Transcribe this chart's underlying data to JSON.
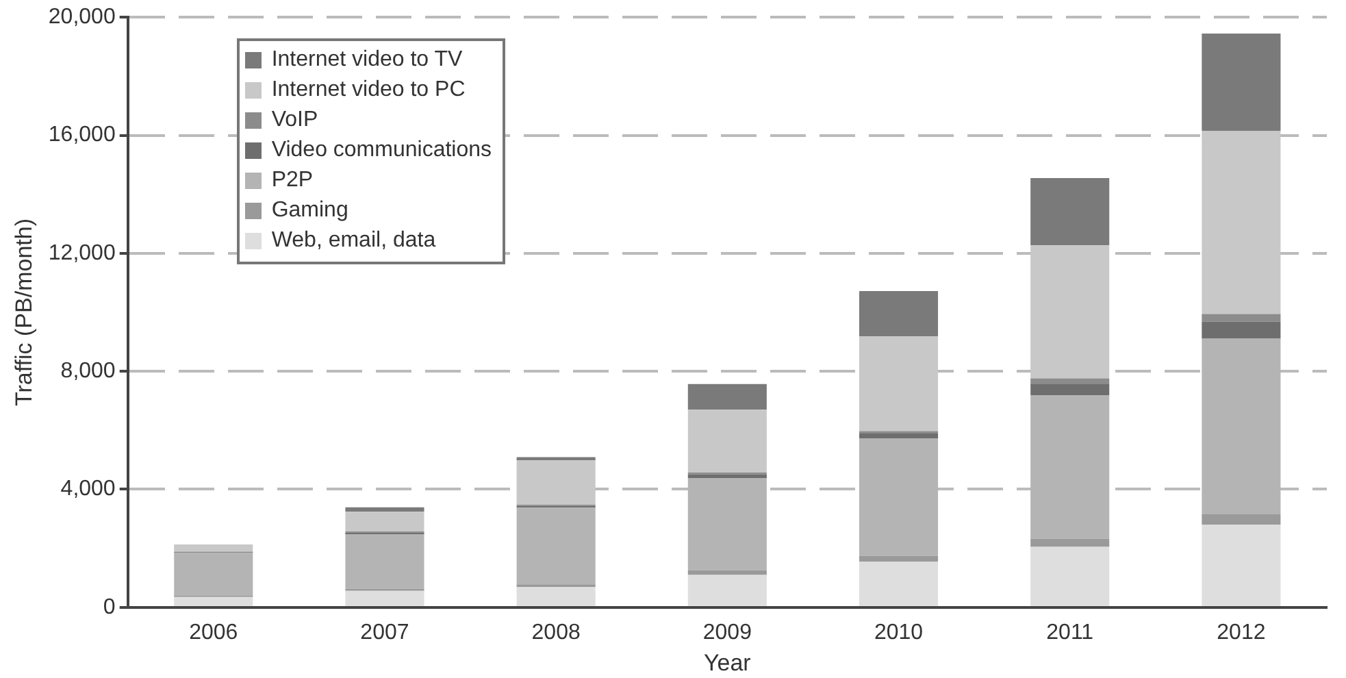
{
  "chart_data": {
    "type": "bar",
    "stacked": true,
    "xlabel": "Year",
    "ylabel": "Traffic (PB/month)",
    "categories": [
      "2006",
      "2007",
      "2008",
      "2009",
      "2010",
      "2011",
      "2012"
    ],
    "series": [
      {
        "name": "Web, email, data",
        "color": "#dedede",
        "values": [
          350,
          560,
          690,
          1100,
          1550,
          2050,
          2800
        ]
      },
      {
        "name": "Gaming",
        "color": "#9a9a9a",
        "values": [
          40,
          70,
          90,
          160,
          200,
          280,
          350
        ]
      },
      {
        "name": "P2P",
        "color": "#b4b4b4",
        "values": [
          1450,
          1840,
          2600,
          3110,
          3970,
          4850,
          5970
        ]
      },
      {
        "name": "Video communications",
        "color": "#6e6e6e",
        "values": [
          30,
          60,
          60,
          140,
          170,
          400,
          560
        ]
      },
      {
        "name": "VoIP",
        "color": "#8c8c8c",
        "values": [
          20,
          40,
          40,
          60,
          80,
          180,
          260
        ]
      },
      {
        "name": "Internet video to PC",
        "color": "#c8c8c8",
        "values": [
          240,
          670,
          1500,
          2130,
          3210,
          4510,
          6210
        ]
      },
      {
        "name": "Internet video to TV",
        "color": "#7a7a7a",
        "values": [
          0,
          150,
          110,
          870,
          1540,
          2280,
          3300
        ]
      }
    ],
    "ylim": [
      0,
      20000
    ],
    "yticks": [
      0,
      {
        "value": 4000,
        "label": "4,000"
      },
      {
        "value": 8000,
        "label": "8,000"
      },
      {
        "value": 12000,
        "label": "12,000"
      },
      {
        "value": 16000,
        "label": "16,000"
      },
      {
        "value": 20000,
        "label": "20,000"
      }
    ],
    "grid": "y",
    "legend": "top left"
  }
}
